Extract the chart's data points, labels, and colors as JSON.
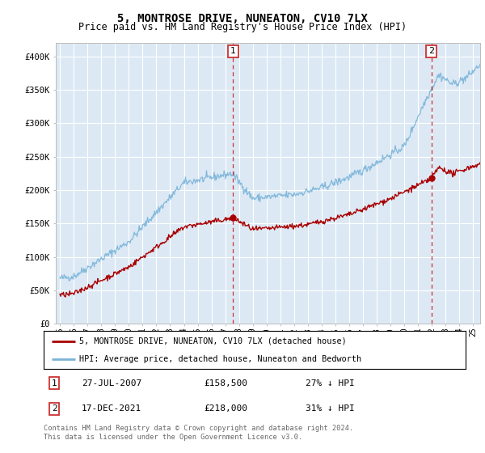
{
  "title": "5, MONTROSE DRIVE, NUNEATON, CV10 7LX",
  "subtitle": "Price paid vs. HM Land Registry's House Price Index (HPI)",
  "ylim": [
    0,
    420000
  ],
  "yticks": [
    0,
    50000,
    100000,
    150000,
    200000,
    250000,
    300000,
    350000,
    400000
  ],
  "ytick_labels": [
    "£0",
    "£50K",
    "£100K",
    "£150K",
    "£200K",
    "£250K",
    "£300K",
    "£350K",
    "£400K"
  ],
  "bg_color": "#dce9f5",
  "grid_color": "#ffffff",
  "hpi_color": "#7ab4d8",
  "price_color": "#aa0000",
  "marker1_date_num": 2007.57,
  "marker1_price": 158500,
  "marker2_date_num": 2021.96,
  "marker2_price": 218000,
  "legend_label_red": "5, MONTROSE DRIVE, NUNEATON, CV10 7LX (detached house)",
  "legend_label_blue": "HPI: Average price, detached house, Nuneaton and Bedworth",
  "annotation1_date": "27-JUL-2007",
  "annotation1_price": "£158,500",
  "annotation1_hpi": "27% ↓ HPI",
  "annotation2_date": "17-DEC-2021",
  "annotation2_price": "£218,000",
  "annotation2_hpi": "31% ↓ HPI",
  "footer": "Contains HM Land Registry data © Crown copyright and database right 2024.\nThis data is licensed under the Open Government Licence v3.0.",
  "xlim_min": 1994.7,
  "xlim_max": 2025.5
}
